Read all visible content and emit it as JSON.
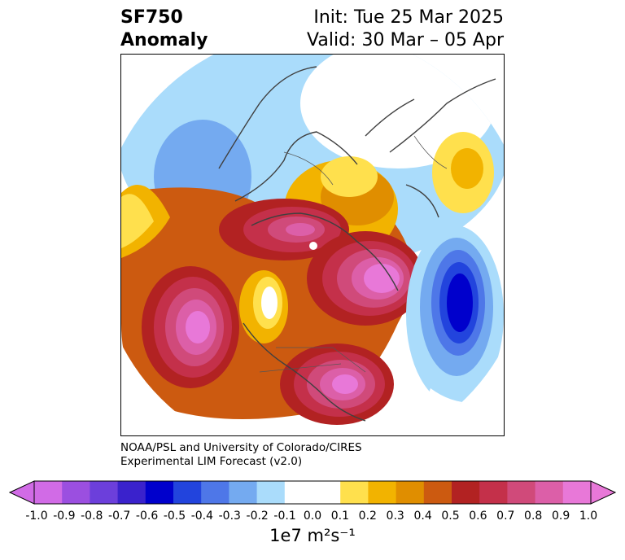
{
  "title": {
    "variable": "SF750",
    "kind": "Anomaly",
    "init": "Init: Tue 25 Mar 2025",
    "valid": "Valid: 30 Mar – 05 Apr"
  },
  "credit": {
    "line1": "NOAA/PSL and University of Colorado/CIRES",
    "line2": "Experimental LIM Forecast (v2.0)"
  },
  "colorbar": {
    "label": "1e7 m²s⁻¹",
    "ticks": [
      "-1.0",
      "-0.9",
      "-0.8",
      "-0.7",
      "-0.6",
      "-0.5",
      "-0.4",
      "-0.3",
      "-0.2",
      "-0.1",
      "0.0",
      "0.1",
      "0.2",
      "0.3",
      "0.4",
      "0.5",
      "0.6",
      "0.7",
      "0.8",
      "0.9",
      "1.0"
    ],
    "colors": [
      "#d16be6",
      "#9b4fe0",
      "#6c3fdb",
      "#3a22cc",
      "#0000cc",
      "#2244dd",
      "#4e77e8",
      "#74aaf0",
      "#aadcfb",
      "#ffffff",
      "#ffffff",
      "#ffe04d",
      "#f2b300",
      "#e08e00",
      "#cc5a10",
      "#b22222",
      "#c4304a",
      "#d04a7a",
      "#dc5fa8",
      "#e878d8"
    ],
    "extend_low_color": "#d16be6",
    "extend_high_color": "#e878d8"
  }
}
